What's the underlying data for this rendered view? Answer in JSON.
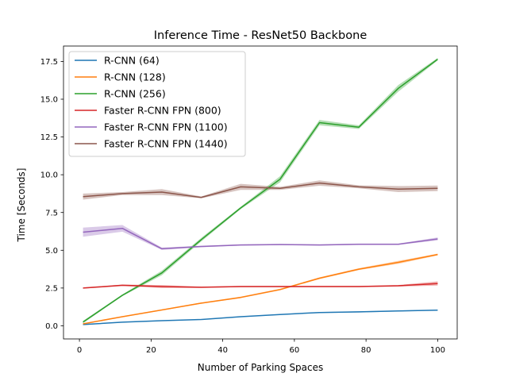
{
  "chart_data": {
    "type": "line",
    "title": "Inference Time - ResNet50 Backbone",
    "xlabel": "Number of Parking Spaces",
    "ylabel": "Time [Seconds]",
    "xlim": [
      -4.45,
      105.45
    ],
    "ylim": [
      -0.87,
      18.52
    ],
    "xticks": [
      0,
      20,
      40,
      60,
      80,
      100
    ],
    "xtick_labels": [
      "0",
      "20",
      "40",
      "60",
      "80",
      "100"
    ],
    "yticks": [
      0.0,
      2.5,
      5.0,
      7.5,
      10.0,
      12.5,
      15.0,
      17.5
    ],
    "ytick_labels": [
      "0.0",
      "2.5",
      "5.0",
      "7.5",
      "10.0",
      "12.5",
      "15.0",
      "17.5"
    ],
    "grid": false,
    "legend_position": "upper-left",
    "x": [
      1,
      12,
      23,
      34,
      45,
      56,
      67,
      78,
      89,
      100
    ],
    "series": [
      {
        "name": "R-CNN (64)",
        "color": "#1f77b4",
        "values": [
          0.08,
          0.24,
          0.34,
          0.42,
          0.6,
          0.75,
          0.88,
          0.92,
          0.98,
          1.04
        ],
        "band": [
          0.03,
          0.02,
          0.02,
          0.02,
          0.02,
          0.02,
          0.03,
          0.04,
          0.03,
          0.03
        ]
      },
      {
        "name": "R-CNN (128)",
        "color": "#ff7f0e",
        "values": [
          0.13,
          0.6,
          1.05,
          1.5,
          1.88,
          2.4,
          3.15,
          3.75,
          4.2,
          4.72
        ],
        "band": [
          0.03,
          0.03,
          0.03,
          0.04,
          0.05,
          0.05,
          0.06,
          0.06,
          0.1,
          0.06
        ]
      },
      {
        "name": "R-CNN (256)",
        "color": "#2ca02c",
        "values": [
          0.25,
          2.02,
          3.5,
          5.7,
          7.8,
          9.7,
          13.45,
          13.15,
          15.72,
          17.65
        ],
        "band": [
          0.08,
          0.06,
          0.15,
          0.12,
          0.08,
          0.2,
          0.18,
          0.12,
          0.22,
          0.08
        ]
      },
      {
        "name": "Faster R-CNN FPN (800)",
        "color": "#d62728",
        "values": [
          2.5,
          2.68,
          2.6,
          2.55,
          2.6,
          2.6,
          2.6,
          2.6,
          2.65,
          2.8
        ],
        "band": [
          0.04,
          0.05,
          0.1,
          0.04,
          0.04,
          0.04,
          0.04,
          0.04,
          0.05,
          0.14
        ]
      },
      {
        "name": "Faster R-CNN FPN (1100)",
        "color": "#9467bd",
        "values": [
          6.2,
          6.45,
          5.1,
          5.25,
          5.35,
          5.38,
          5.35,
          5.4,
          5.4,
          5.75
        ],
        "band": [
          0.3,
          0.22,
          0.08,
          0.05,
          0.04,
          0.04,
          0.04,
          0.04,
          0.04,
          0.1
        ]
      },
      {
        "name": "Faster R-CNN FPN (1440)",
        "color": "#8c564b",
        "values": [
          8.55,
          8.75,
          8.85,
          8.5,
          9.2,
          9.1,
          9.45,
          9.2,
          9.05,
          9.1
        ],
        "band": [
          0.2,
          0.1,
          0.2,
          0.06,
          0.2,
          0.1,
          0.18,
          0.1,
          0.2,
          0.18
        ]
      }
    ]
  }
}
